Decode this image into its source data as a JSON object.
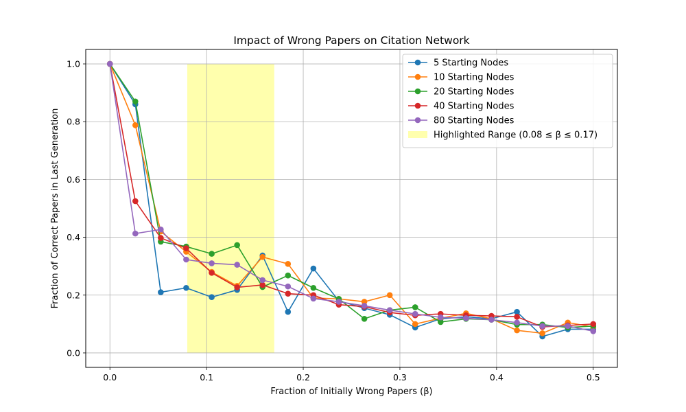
{
  "chart_data": {
    "type": "line",
    "title": "Impact of Wrong Papers on Citation Network",
    "xlabel": "Fraction of Initially Wrong Papers (β)",
    "ylabel": "Fraction of Correct Papers in Last Generation",
    "xlim": [
      -0.025,
      0.525
    ],
    "ylim": [
      -0.05,
      1.05
    ],
    "x_ticks": [
      0.0,
      0.1,
      0.2,
      0.3,
      0.4,
      0.5
    ],
    "x_tick_labels": [
      "0.0",
      "0.1",
      "0.2",
      "0.3",
      "0.4",
      "0.5"
    ],
    "y_ticks": [
      0.0,
      0.2,
      0.4,
      0.6,
      0.8,
      1.0
    ],
    "y_tick_labels": [
      "0.0",
      "0.2",
      "0.4",
      "0.6",
      "0.8",
      "1.0"
    ],
    "grid": true,
    "legend_position": "upper right",
    "x": [
      0.0,
      0.0263,
      0.0526,
      0.0789,
      0.1053,
      0.1316,
      0.1579,
      0.1842,
      0.2105,
      0.2368,
      0.2632,
      0.2895,
      0.3158,
      0.3421,
      0.3684,
      0.3947,
      0.4211,
      0.4474,
      0.4737,
      0.5
    ],
    "series": [
      {
        "name": "5 Starting Nodes",
        "color": "#1f77b4",
        "values": [
          1.0,
          0.86,
          0.21,
          0.225,
          0.193,
          0.218,
          0.337,
          0.142,
          0.292,
          0.18,
          0.155,
          0.132,
          0.088,
          0.118,
          0.125,
          0.118,
          0.142,
          0.057,
          0.082,
          0.082
        ]
      },
      {
        "name": "10 Starting Nodes",
        "color": "#ff7f0e",
        "values": [
          1.0,
          0.788,
          0.42,
          0.35,
          0.28,
          0.232,
          0.332,
          0.308,
          0.19,
          0.187,
          0.177,
          0.2,
          0.1,
          0.12,
          0.137,
          0.118,
          0.078,
          0.068,
          0.105,
          0.09
        ]
      },
      {
        "name": "20 Starting Nodes",
        "color": "#2ca02c",
        "values": [
          1.0,
          0.87,
          0.385,
          0.368,
          0.343,
          0.373,
          0.228,
          0.268,
          0.225,
          0.187,
          0.118,
          0.148,
          0.158,
          0.107,
          0.118,
          0.115,
          0.098,
          0.098,
          0.088,
          0.093
        ]
      },
      {
        "name": "40 Starting Nodes",
        "color": "#d62728",
        "values": [
          1.0,
          0.525,
          0.398,
          0.362,
          0.277,
          0.227,
          0.235,
          0.205,
          0.2,
          0.167,
          0.16,
          0.14,
          0.13,
          0.135,
          0.13,
          0.128,
          0.125,
          0.09,
          0.095,
          0.1
        ]
      },
      {
        "name": "80 Starting Nodes",
        "color": "#9467bd",
        "values": [
          1.0,
          0.413,
          0.427,
          0.323,
          0.31,
          0.305,
          0.252,
          0.23,
          0.188,
          0.177,
          0.163,
          0.148,
          0.135,
          0.123,
          0.12,
          0.115,
          0.105,
          0.093,
          0.093,
          0.075
        ]
      }
    ],
    "highlight": {
      "label": "Highlighted Range (0.08 ≤ β ≤ 0.17)",
      "x_start": 0.08,
      "x_end": 0.17,
      "y_start": 0.0,
      "y_end": 1.0,
      "color": "#ffff99"
    }
  }
}
